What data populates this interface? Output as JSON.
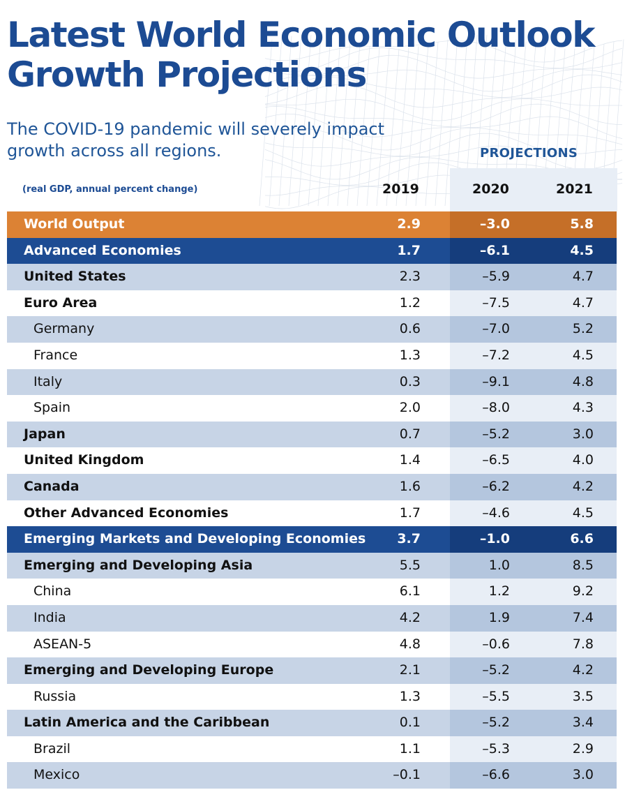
{
  "title_lines": [
    "Latest World Economic Outlook",
    "Growth Projections"
  ],
  "subtitle_lines": [
    "The COVID-19 pandemic will severely impact",
    "growth across all regions."
  ],
  "projections_label": "PROJECTIONS",
  "unit_label": "(real GDP, annual percent change)",
  "years": [
    "2019",
    "2020",
    "2021"
  ],
  "colors": {
    "title": "#1c4b93",
    "world_row": "#dc8234",
    "group_row": "#1d4c93",
    "stripe": "#c7d4e6"
  },
  "chart_data": {
    "type": "table",
    "columns": [
      "2019",
      "2020",
      "2021"
    ],
    "projection_columns": [
      "2020",
      "2021"
    ],
    "rows": [
      {
        "name": "World Output",
        "values": [
          "2.9",
          "-3.0",
          "5.8"
        ],
        "style": "world"
      },
      {
        "name": "Advanced Economies",
        "values": [
          "1.7",
          "-6.1",
          "4.5"
        ],
        "style": "group"
      },
      {
        "name": "United States",
        "values": [
          "2.3",
          "-5.9",
          "4.7"
        ],
        "style": "bold"
      },
      {
        "name": "Euro Area",
        "values": [
          "1.2",
          "-7.5",
          "4.7"
        ],
        "style": "bold"
      },
      {
        "name": "Germany",
        "values": [
          "0.6",
          "-7.0",
          "5.2"
        ],
        "style": "sub"
      },
      {
        "name": "France",
        "values": [
          "1.3",
          "-7.2",
          "4.5"
        ],
        "style": "sub"
      },
      {
        "name": "Italy",
        "values": [
          "0.3",
          "-9.1",
          "4.8"
        ],
        "style": "sub"
      },
      {
        "name": "Spain",
        "values": [
          "2.0",
          "-8.0",
          "4.3"
        ],
        "style": "sub"
      },
      {
        "name": "Japan",
        "values": [
          "0.7",
          "-5.2",
          "3.0"
        ],
        "style": "bold"
      },
      {
        "name": "United Kingdom",
        "values": [
          "1.4",
          "-6.5",
          "4.0"
        ],
        "style": "bold"
      },
      {
        "name": "Canada",
        "values": [
          "1.6",
          "-6.2",
          "4.2"
        ],
        "style": "bold"
      },
      {
        "name": "Other Advanced Economies",
        "values": [
          "1.7",
          "-4.6",
          "4.5"
        ],
        "style": "bold"
      },
      {
        "name": "Emerging Markets and Developing Economies",
        "values": [
          "3.7",
          "-1.0",
          "6.6"
        ],
        "style": "group"
      },
      {
        "name": "Emerging and Developing Asia",
        "values": [
          "5.5",
          "1.0",
          "8.5"
        ],
        "style": "bold"
      },
      {
        "name": "China",
        "values": [
          "6.1",
          "1.2",
          "9.2"
        ],
        "style": "sub"
      },
      {
        "name": "India",
        "values": [
          "4.2",
          "1.9",
          "7.4"
        ],
        "style": "sub"
      },
      {
        "name": "ASEAN-5",
        "values": [
          "4.8",
          "-0.6",
          "7.8"
        ],
        "style": "sub"
      },
      {
        "name": "Emerging and Developing Europe",
        "values": [
          "2.1",
          "-5.2",
          "4.2"
        ],
        "style": "bold"
      },
      {
        "name": "Russia",
        "values": [
          "1.3",
          "-5.5",
          "3.5"
        ],
        "style": "sub"
      },
      {
        "name": "Latin America and the Caribbean",
        "values": [
          "0.1",
          "-5.2",
          "3.4"
        ],
        "style": "bold"
      },
      {
        "name": "Brazil",
        "values": [
          "1.1",
          "-5.3",
          "2.9"
        ],
        "style": "sub"
      },
      {
        "name": "Mexico",
        "values": [
          "-0.1",
          "-6.6",
          "3.0"
        ],
        "style": "sub"
      }
    ]
  }
}
